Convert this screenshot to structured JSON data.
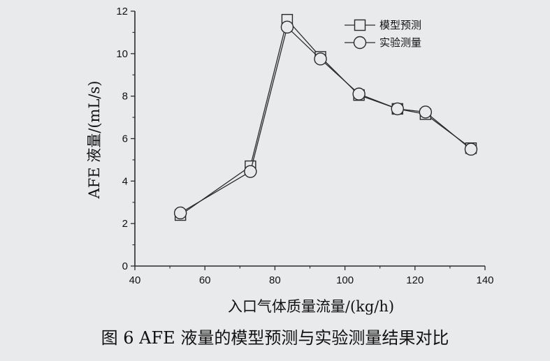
{
  "caption": "图 6 AFE 液量的模型预测与实验测量结果对比",
  "colors": {
    "line": "#2a2a2a",
    "background": "#e9eaec"
  },
  "chart_data": {
    "type": "line",
    "xlabel": "入口气体质量流量/(kg/h)",
    "ylabel": "AFE 液量/(mL/s)",
    "xlim": [
      40,
      140
    ],
    "ylim": [
      0,
      12
    ],
    "xticks": [
      40,
      60,
      80,
      100,
      120,
      140
    ],
    "yticks": [
      0,
      2,
      4,
      6,
      8,
      10,
      12
    ],
    "grid": false,
    "legend_position": "top-right",
    "series": [
      {
        "name": "模型预测",
        "marker": "square",
        "x": [
          53,
          73,
          83.5,
          93,
          104,
          115,
          123,
          136
        ],
        "y": [
          2.4,
          4.7,
          11.6,
          9.85,
          8.05,
          7.4,
          7.15,
          5.55
        ]
      },
      {
        "name": "实验测量",
        "marker": "circle",
        "x": [
          53,
          73,
          83.5,
          93,
          104,
          115,
          123,
          136
        ],
        "y": [
          2.5,
          4.45,
          11.25,
          9.75,
          8.1,
          7.4,
          7.25,
          5.5
        ]
      }
    ]
  }
}
